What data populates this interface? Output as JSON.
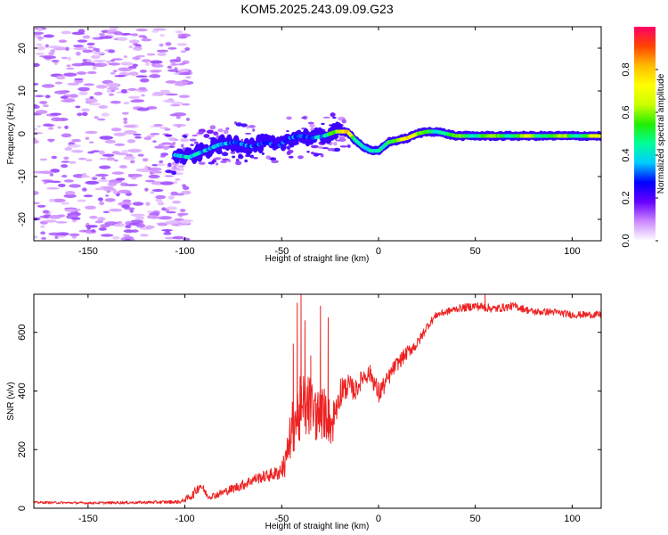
{
  "title": "KOM5.2025.243.09.09.G23",
  "colors": {
    "snr_line": "#ee2222",
    "trace_low": "#3300dd",
    "trace_high": "#ee1111",
    "scatter": "#cc99ff"
  },
  "chart_data": [
    {
      "type": "heatmap",
      "name": "spectrogram",
      "xlabel": "Height of straight line (km)",
      "ylabel": "Frequency (Hz)",
      "xlim": [
        -178,
        115
      ],
      "ylim": [
        -25,
        25
      ],
      "xticks": [
        -150,
        -100,
        -50,
        0,
        50,
        100
      ],
      "yticks": [
        -20,
        -10,
        0,
        10,
        20
      ],
      "colorbar": {
        "label": "Normalized spectral amplitude",
        "range": [
          0,
          1
        ],
        "ticks": [
          0.0,
          0.2,
          0.4,
          0.6,
          0.8
        ],
        "tick_labels": [
          "0.0",
          "0.2",
          "0.4",
          "0.6",
          "0.8"
        ],
        "colormap": [
          "#ffffff",
          "#cc88ff",
          "#6600ff",
          "#0000ff",
          "#00ccff",
          "#00ff99",
          "#22ee00",
          "#ccff00",
          "#ffff00",
          "#ffbb00",
          "#ff4400",
          "#ff0066"
        ]
      },
      "ridge": {
        "x": [
          -105,
          -98,
          -90,
          -82,
          -74,
          -66,
          -58,
          -52,
          -46,
          -40,
          -34,
          -28,
          -22,
          -16,
          -12,
          -8,
          -4,
          0,
          5,
          10,
          15,
          20,
          25,
          30,
          40,
          60,
          80,
          100,
          115
        ],
        "freq": [
          -5,
          -5.5,
          -4,
          -2.5,
          -2,
          -3,
          -2,
          -3,
          -1,
          -0.5,
          -1,
          -0.5,
          0.5,
          0.5,
          -1.5,
          -3,
          -4,
          -4,
          -2,
          -1.5,
          -1,
          0,
          0.5,
          0.5,
          -0.5,
          -0.5,
          -0.5,
          -0.5,
          -0.5
        ],
        "amplitude": [
          0.35,
          0.4,
          0.35,
          0.35,
          0.3,
          0.3,
          0.3,
          0.25,
          0.3,
          0.3,
          0.3,
          0.4,
          0.6,
          0.8,
          0.5,
          0.4,
          0.4,
          0.4,
          0.5,
          0.6,
          0.8,
          0.6,
          0.5,
          0.5,
          0.5,
          0.55,
          0.55,
          0.55,
          0.6
        ]
      }
    },
    {
      "type": "line",
      "name": "snr",
      "xlabel": "Height of straight line (km)",
      "ylabel": "SNR (v/v)",
      "xlim": [
        -178,
        115
      ],
      "ylim": [
        0,
        730
      ],
      "xticks": [
        -150,
        -100,
        -50,
        0,
        50,
        100
      ],
      "yticks": [
        0,
        200,
        400,
        600
      ],
      "trend": {
        "x": [
          -178,
          -150,
          -120,
          -102,
          -96,
          -92,
          -88,
          -84,
          -76,
          -70,
          -64,
          -58,
          -52,
          -48,
          -44,
          -40,
          -36,
          -32,
          -28,
          -24,
          -20,
          -16,
          -12,
          -8,
          -4,
          0,
          4,
          8,
          12,
          16,
          20,
          25,
          30,
          40,
          50,
          60,
          70,
          80,
          90,
          100,
          115
        ],
        "y": [
          20,
          18,
          20,
          22,
          45,
          80,
          40,
          45,
          65,
          80,
          100,
          110,
          120,
          150,
          260,
          300,
          320,
          290,
          300,
          260,
          380,
          420,
          400,
          450,
          460,
          390,
          430,
          480,
          510,
          540,
          560,
          620,
          660,
          680,
          690,
          680,
          690,
          670,
          670,
          660,
          660
        ],
        "noise": [
          4,
          4,
          5,
          6,
          15,
          18,
          10,
          12,
          15,
          18,
          18,
          20,
          25,
          45,
          90,
          110,
          100,
          85,
          80,
          70,
          50,
          40,
          35,
          30,
          30,
          40,
          30,
          25,
          25,
          22,
          20,
          15,
          12,
          12,
          15,
          14,
          13,
          12,
          12,
          12,
          12
        ]
      },
      "spikes": [
        {
          "x": -44,
          "y": 560
        },
        {
          "x": -42,
          "y": 700
        },
        {
          "x": -40,
          "y": 730
        },
        {
          "x": -38,
          "y": 640
        },
        {
          "x": -35,
          "y": 520
        },
        {
          "x": -30,
          "y": 690
        },
        {
          "x": -26,
          "y": 650
        },
        {
          "x": 2,
          "y": 430
        },
        {
          "x": 55,
          "y": 730
        }
      ]
    }
  ]
}
